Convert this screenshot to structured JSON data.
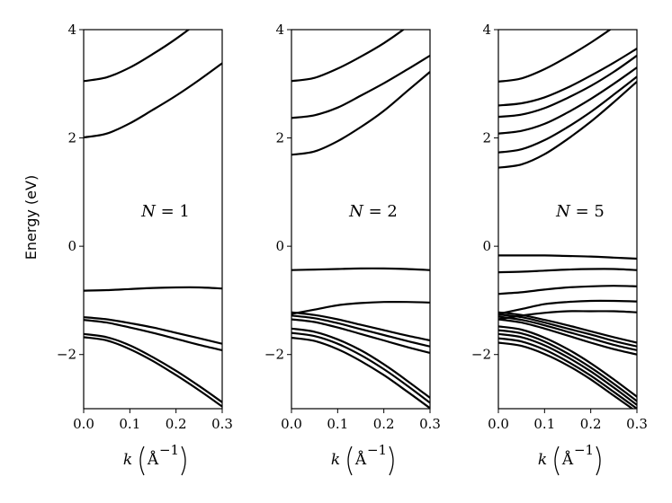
{
  "figure": {
    "ylabel": "Energy (eV)",
    "xlabel_k": "k",
    "xlabel_unit": "Å",
    "xlabel_exp": "−1"
  },
  "chart_data": [
    {
      "type": "line",
      "annotation": "N = 1",
      "xlabel": "k (Å⁻¹)",
      "ylabel": "Energy (eV)",
      "xlim": [
        0.0,
        0.3
      ],
      "ylim": [
        -3,
        4
      ],
      "x_ticks": [
        "0.0",
        "0.1",
        "0.2",
        "0.3"
      ],
      "y_ticks": [
        "−2",
        "0",
        "2",
        "4"
      ],
      "x": [
        0.0,
        0.05,
        0.1,
        0.15,
        0.2,
        0.25,
        0.3
      ],
      "series": [
        {
          "values": [
            3.05,
            3.12,
            3.3,
            3.55,
            3.83,
            4.15,
            4.5
          ]
        },
        {
          "values": [
            2.01,
            2.08,
            2.27,
            2.52,
            2.78,
            3.07,
            3.38
          ]
        },
        {
          "values": [
            -0.82,
            -0.81,
            -0.79,
            -0.77,
            -0.76,
            -0.76,
            -0.78
          ]
        },
        {
          "values": [
            -1.31,
            -1.35,
            -1.42,
            -1.5,
            -1.6,
            -1.7,
            -1.8
          ]
        },
        {
          "values": [
            -1.36,
            -1.41,
            -1.5,
            -1.6,
            -1.71,
            -1.82,
            -1.92
          ]
        },
        {
          "values": [
            -1.62,
            -1.68,
            -1.83,
            -2.05,
            -2.3,
            -2.58,
            -2.88
          ]
        },
        {
          "values": [
            -1.68,
            -1.74,
            -1.9,
            -2.12,
            -2.38,
            -2.66,
            -2.96
          ]
        }
      ]
    },
    {
      "type": "line",
      "annotation": "N = 2",
      "xlabel": "k (Å⁻¹)",
      "ylabel": "",
      "xlim": [
        0.0,
        0.3
      ],
      "ylim": [
        -3,
        4
      ],
      "x_ticks": [
        "0.0",
        "0.1",
        "0.2",
        "0.3"
      ],
      "y_ticks": [
        "−2",
        "0",
        "2",
        "4"
      ],
      "x": [
        0.0,
        0.05,
        0.1,
        0.15,
        0.2,
        0.25,
        0.3
      ],
      "series": [
        {
          "values": [
            3.05,
            3.11,
            3.28,
            3.5,
            3.75,
            4.05,
            4.4
          ]
        },
        {
          "values": [
            2.37,
            2.42,
            2.56,
            2.78,
            3.01,
            3.26,
            3.52
          ]
        },
        {
          "values": [
            1.69,
            1.75,
            1.94,
            2.2,
            2.5,
            2.86,
            3.22
          ]
        },
        {
          "values": [
            -0.44,
            -0.43,
            -0.42,
            -0.41,
            -0.41,
            -0.42,
            -0.44
          ]
        },
        {
          "values": [
            -1.25,
            -1.17,
            -1.09,
            -1.05,
            -1.03,
            -1.03,
            -1.04
          ]
        },
        {
          "values": [
            -1.22,
            -1.27,
            -1.35,
            -1.45,
            -1.55,
            -1.65,
            -1.74
          ]
        },
        {
          "values": [
            -1.28,
            -1.33,
            -1.42,
            -1.53,
            -1.64,
            -1.75,
            -1.85
          ]
        },
        {
          "values": [
            -1.35,
            -1.4,
            -1.5,
            -1.62,
            -1.74,
            -1.86,
            -1.97
          ]
        },
        {
          "values": [
            -1.52,
            -1.58,
            -1.72,
            -1.92,
            -2.18,
            -2.48,
            -2.8
          ]
        },
        {
          "values": [
            -1.6,
            -1.66,
            -1.8,
            -2.01,
            -2.27,
            -2.57,
            -2.89
          ]
        },
        {
          "values": [
            -1.69,
            -1.75,
            -1.9,
            -2.12,
            -2.38,
            -2.68,
            -2.99
          ]
        }
      ]
    },
    {
      "type": "line",
      "annotation": "N = 5",
      "xlabel": "k (Å⁻¹)",
      "ylabel": "",
      "xlim": [
        0.0,
        0.3
      ],
      "ylim": [
        -3,
        4
      ],
      "x_ticks": [
        "0.0",
        "0.1",
        "0.2",
        "0.3"
      ],
      "y_ticks": [
        "−2",
        "0",
        "2",
        "4"
      ],
      "x": [
        0.0,
        0.05,
        0.1,
        0.15,
        0.2,
        0.25,
        0.3
      ],
      "series": [
        {
          "values": [
            3.04,
            3.1,
            3.27,
            3.5,
            3.76,
            4.05,
            4.38
          ]
        },
        {
          "values": [
            2.6,
            2.64,
            2.75,
            2.93,
            3.15,
            3.39,
            3.65
          ]
        },
        {
          "values": [
            2.39,
            2.43,
            2.55,
            2.74,
            2.96,
            3.22,
            3.52
          ]
        },
        {
          "values": [
            2.08,
            2.13,
            2.26,
            2.47,
            2.72,
            3.0,
            3.3
          ]
        },
        {
          "values": [
            1.73,
            1.79,
            1.96,
            2.2,
            2.48,
            2.8,
            3.13
          ]
        },
        {
          "values": [
            1.45,
            1.51,
            1.7,
            1.98,
            2.3,
            2.66,
            3.04
          ]
        },
        {
          "values": [
            -0.17,
            -0.17,
            -0.17,
            -0.18,
            -0.19,
            -0.21,
            -0.23
          ]
        },
        {
          "values": [
            -0.48,
            -0.47,
            -0.45,
            -0.43,
            -0.42,
            -0.42,
            -0.44
          ]
        },
        {
          "values": [
            -0.88,
            -0.85,
            -0.8,
            -0.76,
            -0.74,
            -0.73,
            -0.74
          ]
        },
        {
          "values": [
            -1.25,
            -1.16,
            -1.07,
            -1.03,
            -1.01,
            -1.01,
            -1.02
          ]
        },
        {
          "values": [
            -1.35,
            -1.28,
            -1.23,
            -1.2,
            -1.2,
            -1.2,
            -1.22
          ]
        },
        {
          "values": [
            -1.22,
            -1.27,
            -1.36,
            -1.46,
            -1.57,
            -1.68,
            -1.78
          ]
        },
        {
          "values": [
            -1.26,
            -1.31,
            -1.41,
            -1.52,
            -1.63,
            -1.75,
            -1.85
          ]
        },
        {
          "values": [
            -1.3,
            -1.36,
            -1.46,
            -1.58,
            -1.7,
            -1.82,
            -1.92
          ]
        },
        {
          "values": [
            -1.35,
            -1.41,
            -1.52,
            -1.65,
            -1.78,
            -1.9,
            -2.0
          ]
        },
        {
          "values": [
            -1.48,
            -1.54,
            -1.69,
            -1.9,
            -2.16,
            -2.46,
            -2.78
          ]
        },
        {
          "values": [
            -1.55,
            -1.61,
            -1.76,
            -1.98,
            -2.24,
            -2.54,
            -2.86
          ]
        },
        {
          "values": [
            -1.62,
            -1.68,
            -1.83,
            -2.05,
            -2.31,
            -2.61,
            -2.93
          ]
        },
        {
          "values": [
            -1.7,
            -1.76,
            -1.91,
            -2.13,
            -2.39,
            -2.69,
            -3.0
          ]
        },
        {
          "values": [
            -1.78,
            -1.84,
            -1.99,
            -2.2,
            -2.46,
            -2.76,
            -3.06
          ]
        }
      ]
    }
  ]
}
